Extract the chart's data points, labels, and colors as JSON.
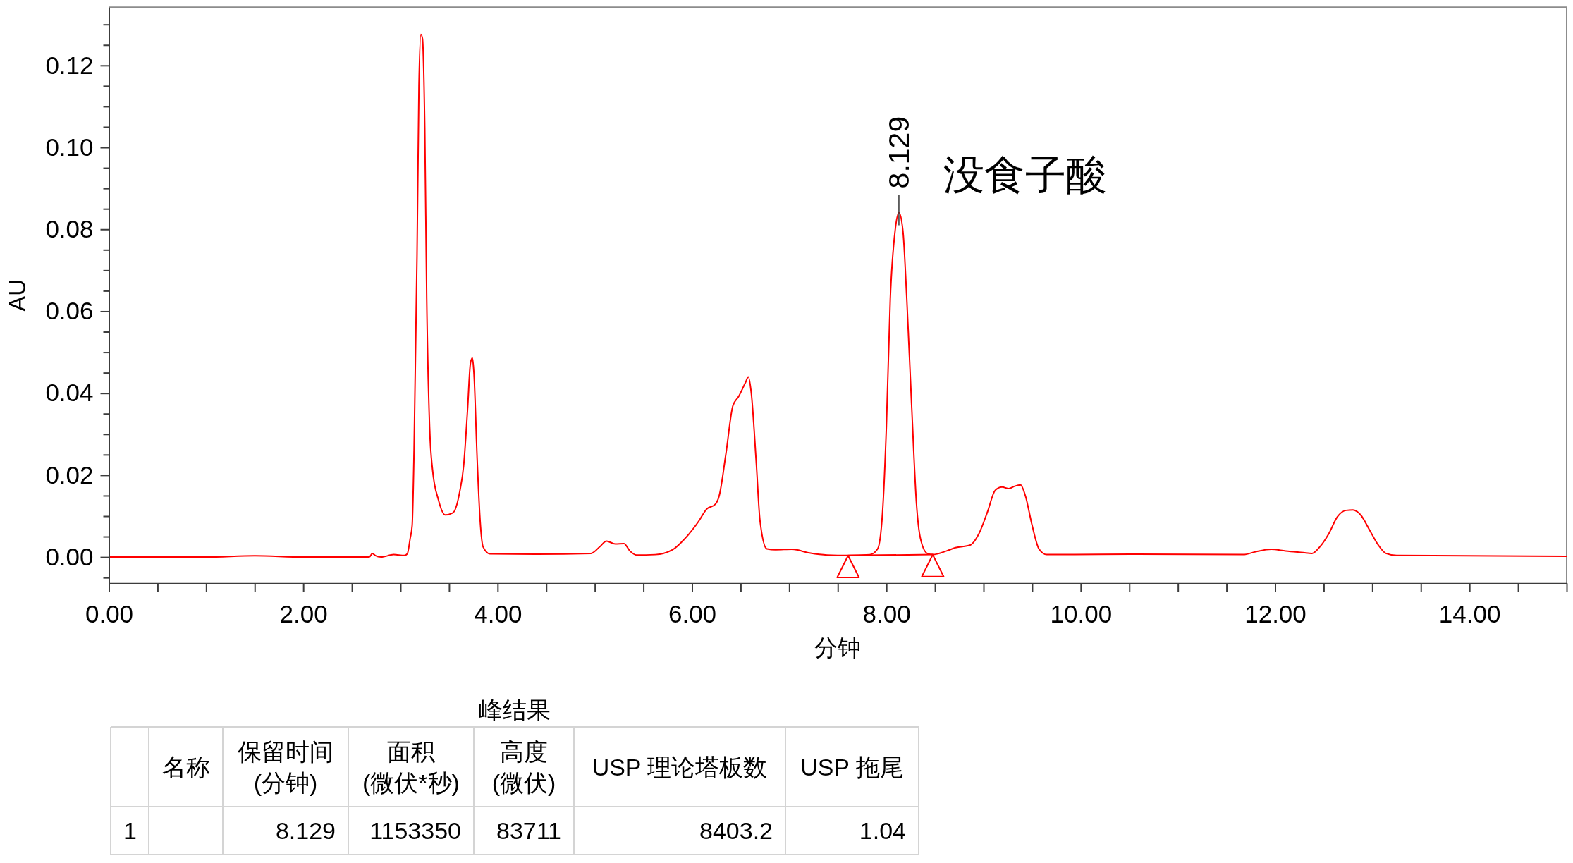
{
  "chart_data": [
    {
      "type": "line",
      "xlabel": "分钟",
      "ylabel": "AU",
      "xlim": [
        0,
        15
      ],
      "ylim": [
        -0.0064,
        0.1342
      ],
      "xticks": [
        {
          "value": 0,
          "label": "0.00"
        },
        {
          "value": 0.5,
          "label": null
        },
        {
          "value": 1,
          "label": null
        },
        {
          "value": 1.5,
          "label": null
        },
        {
          "value": 2,
          "label": "2.00"
        },
        {
          "value": 2.5,
          "label": null
        },
        {
          "value": 3,
          "label": null
        },
        {
          "value": 3.5,
          "label": null
        },
        {
          "value": 4,
          "label": "4.00"
        },
        {
          "value": 4.5,
          "label": null
        },
        {
          "value": 5,
          "label": null
        },
        {
          "value": 5.5,
          "label": null
        },
        {
          "value": 6,
          "label": "6.00"
        },
        {
          "value": 6.5,
          "label": null
        },
        {
          "value": 7,
          "label": null
        },
        {
          "value": 7.5,
          "label": null
        },
        {
          "value": 8,
          "label": "8.00"
        },
        {
          "value": 8.5,
          "label": null
        },
        {
          "value": 9,
          "label": null
        },
        {
          "value": 9.5,
          "label": null
        },
        {
          "value": 10,
          "label": "10.00"
        },
        {
          "value": 10.5,
          "label": null
        },
        {
          "value": 11,
          "label": null
        },
        {
          "value": 11.5,
          "label": null
        },
        {
          "value": 12,
          "label": "12.00"
        },
        {
          "value": 12.5,
          "label": null
        },
        {
          "value": 13,
          "label": null
        },
        {
          "value": 13.5,
          "label": null
        },
        {
          "value": 14,
          "label": "14.00"
        },
        {
          "value": 14.5,
          "label": null
        },
        {
          "value": 15,
          "label": null
        }
      ],
      "yticks": [
        {
          "value": -0.005,
          "label": null
        },
        {
          "value": 0,
          "label": "0.00"
        },
        {
          "value": 0.005,
          "label": null
        },
        {
          "value": 0.01,
          "label": null
        },
        {
          "value": 0.015,
          "label": null
        },
        {
          "value": 0.02,
          "label": "0.02"
        },
        {
          "value": 0.025,
          "label": null
        },
        {
          "value": 0.03,
          "label": null
        },
        {
          "value": 0.035,
          "label": null
        },
        {
          "value": 0.04,
          "label": "0.04"
        },
        {
          "value": 0.045,
          "label": null
        },
        {
          "value": 0.05,
          "label": null
        },
        {
          "value": 0.055,
          "label": null
        },
        {
          "value": 0.06,
          "label": "0.06"
        },
        {
          "value": 0.065,
          "label": null
        },
        {
          "value": 0.07,
          "label": null
        },
        {
          "value": 0.075,
          "label": null
        },
        {
          "value": 0.08,
          "label": "0.08"
        },
        {
          "value": 0.085,
          "label": null
        },
        {
          "value": 0.09,
          "label": null
        },
        {
          "value": 0.095,
          "label": null
        },
        {
          "value": 0.1,
          "label": "0.10"
        },
        {
          "value": 0.105,
          "label": null
        },
        {
          "value": 0.11,
          "label": null
        },
        {
          "value": 0.115,
          "label": null
        },
        {
          "value": 0.12,
          "label": "0.12"
        },
        {
          "value": 0.125,
          "label": null
        },
        {
          "value": 0.13,
          "label": null
        }
      ],
      "series": [
        {
          "color": "#ff0000",
          "x": [
            0,
            1.0,
            1.5,
            2.0,
            2.68,
            2.71,
            2.74,
            2.8,
            2.93,
            3.04,
            3.07,
            3.1,
            3.12,
            3.14,
            3.17,
            3.19,
            3.21,
            3.226,
            3.25,
            3.27,
            3.3,
            3.33,
            3.39,
            3.46,
            3.54,
            3.61,
            3.65,
            3.69,
            3.72,
            3.74,
            3.755,
            3.79,
            3.82,
            3.85,
            3.92,
            4.38,
            4.96,
            5.05,
            5.12,
            5.21,
            5.3,
            5.36,
            5.43,
            5.62,
            5.8,
            5.93,
            6.07,
            6.15,
            6.24,
            6.28,
            6.35,
            6.42,
            6.48,
            6.55,
            6.58,
            6.61,
            6.66,
            6.7,
            6.77,
            6.86,
            7.03,
            7.21,
            7.39,
            7.606,
            7.83,
            7.91,
            7.96,
            8.0,
            8.04,
            8.09,
            8.129,
            8.17,
            8.21,
            8.26,
            8.31,
            8.35,
            8.42,
            8.477,
            8.62,
            8.71,
            8.86,
            8.95,
            9.04,
            9.12,
            9.19,
            9.26,
            9.32,
            9.38,
            9.43,
            9.5,
            9.57,
            9.65,
            10.58,
            11.67,
            11.8,
            11.96,
            12.11,
            12.29,
            12.38,
            12.46,
            12.55,
            12.64,
            12.73,
            12.8,
            12.88,
            12.97,
            13.06,
            13.14,
            13.25,
            15.0
          ],
          "values": [
            0,
            0,
            0.0003,
            0,
            0,
            0.0009,
            0.0004,
            0,
            0.0006,
            0.0004,
            0.0008,
            0.0046,
            0.0077,
            0.0265,
            0.0734,
            0.115,
            0.1276,
            0.1266,
            0.1047,
            0.063,
            0.0317,
            0.0213,
            0.014,
            0.0103,
            0.0108,
            0.016,
            0.0223,
            0.0359,
            0.0473,
            0.0486,
            0.0452,
            0.0234,
            0.0088,
            0.0025,
            0.0008,
            0.0007,
            0.0009,
            0.0025,
            0.0039,
            0.0032,
            0.0033,
            0.0015,
            0.0005,
            0.0006,
            0.0018,
            0.0046,
            0.0088,
            0.0117,
            0.0129,
            0.015,
            0.0254,
            0.0369,
            0.0392,
            0.0426,
            0.044,
            0.04,
            0.0234,
            0.0088,
            0.002,
            0.0018,
            0.0019,
            0.001,
            0.0005,
            0.0004,
            0.0006,
            0.002,
            0.0108,
            0.0317,
            0.063,
            0.0797,
            0.0841,
            0.0797,
            0.063,
            0.0369,
            0.0129,
            0.0046,
            0.0009,
            0.0006,
            0.0015,
            0.0023,
            0.0029,
            0.0056,
            0.011,
            0.0163,
            0.0171,
            0.0167,
            0.0173,
            0.0176,
            0.015,
            0.0077,
            0.002,
            0.0006,
            0.0007,
            0.0006,
            0.0013,
            0.0019,
            0.0015,
            0.0011,
            0.0009,
            0.0025,
            0.0056,
            0.0098,
            0.0114,
            0.0115,
            0.0103,
            0.0067,
            0.003,
            0.0009,
            0.0004,
            0.0002
          ]
        },
        {
          "color": "#ff0000",
          "x": [
            7.606,
            8.477
          ],
          "values": [
            0.0004,
            0.0006
          ]
        },
        {
          "type": "scatter",
          "marker": "triangle",
          "color": "#ff0000",
          "x": [
            7.606,
            8.477
          ],
          "values": [
            -0.0023,
            -0.0021
          ]
        }
      ],
      "annotations": [
        {
          "text": "8.129",
          "x": 8.129,
          "y": 0.0841
        },
        {
          "text": "没食子酸",
          "x": 8.129,
          "y": 0.0841
        }
      ]
    },
    {
      "type": "other",
      "title": "峰结果",
      "categories": [
        "名称",
        "保留时间\n(分钟)",
        "面积\n(微伏*秒)",
        "高度\n(微伏)",
        "USP 理论塔板数",
        "USP 拖尾"
      ],
      "y_categories": [
        "1"
      ],
      "cell_labels": [
        [
          null,
          "8.129",
          "1153350",
          "83711",
          "8403.2",
          "1.04"
        ]
      ]
    }
  ]
}
